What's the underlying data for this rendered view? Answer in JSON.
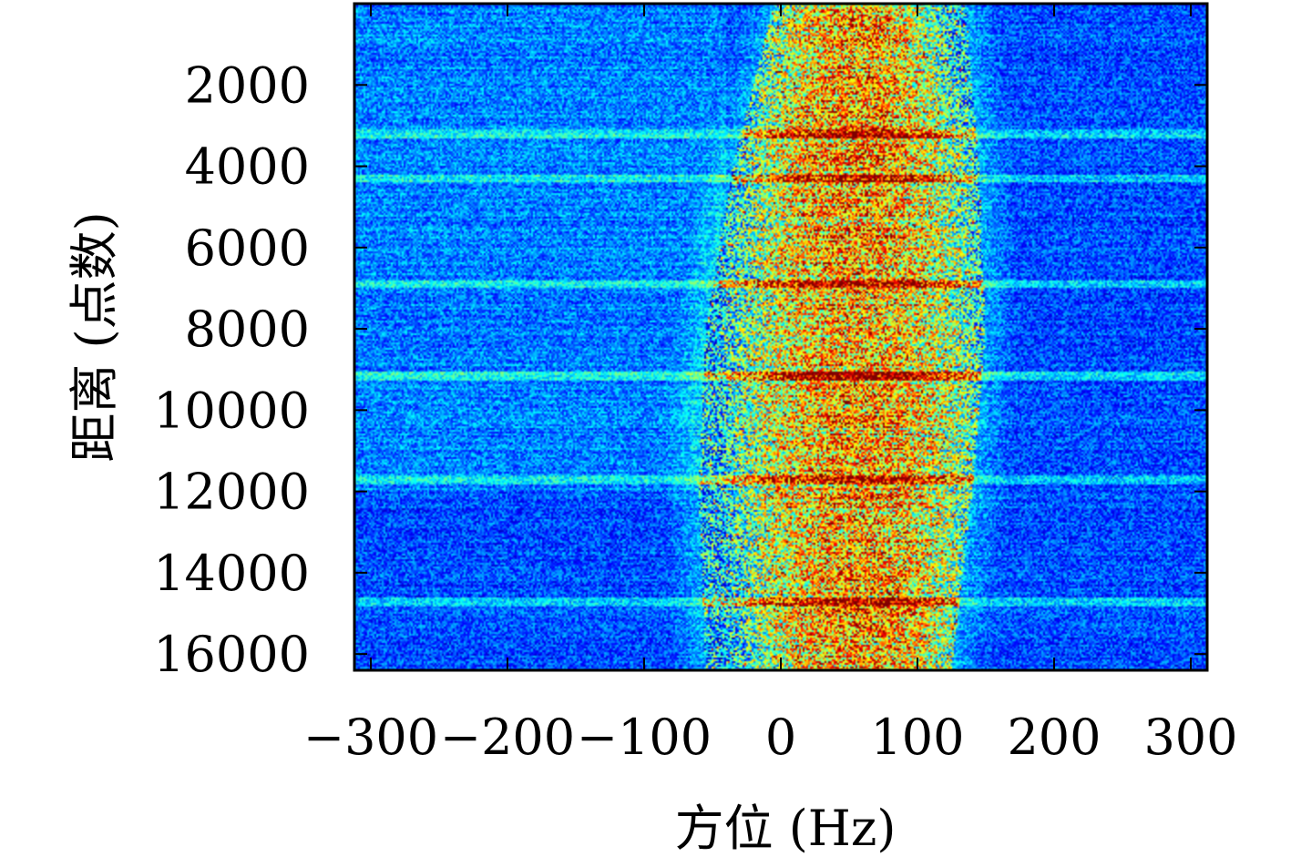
{
  "chart_data": {
    "type": "heatmap",
    "title": "",
    "xlabel": "方位 (Hz)",
    "ylabel": "距离 (点数)",
    "xlim": [
      -312,
      312
    ],
    "ylim": [
      16400,
      0
    ],
    "x_ticks": [
      -300,
      -200,
      -100,
      0,
      100,
      200,
      300
    ],
    "x_tick_labels": [
      "−300",
      "−200",
      "−100",
      "0",
      "100",
      "200",
      "300"
    ],
    "y_ticks": [
      2000,
      4000,
      6000,
      8000,
      10000,
      12000,
      14000,
      16000
    ],
    "y_tick_labels": [
      "2000",
      "4000",
      "6000",
      "8000",
      "10000",
      "12000",
      "14000",
      "16000"
    ],
    "colormap": "jet",
    "intensity_profile": {
      "background_x_range": [
        -312,
        312
      ],
      "clutter_band": [
        {
          "range": 0,
          "x_start": -5,
          "x_end": 135
        },
        {
          "range": 4000,
          "x_start": -35,
          "x_end": 145
        },
        {
          "range": 8000,
          "x_start": -55,
          "x_end": 150
        },
        {
          "range": 12000,
          "x_start": -60,
          "x_end": 140
        },
        {
          "range": 16400,
          "x_start": -55,
          "x_end": 125
        }
      ],
      "peak_doppler_hz": 55,
      "bright_rows": [
        3200,
        4300,
        6900,
        9150,
        11700,
        14700
      ]
    }
  }
}
